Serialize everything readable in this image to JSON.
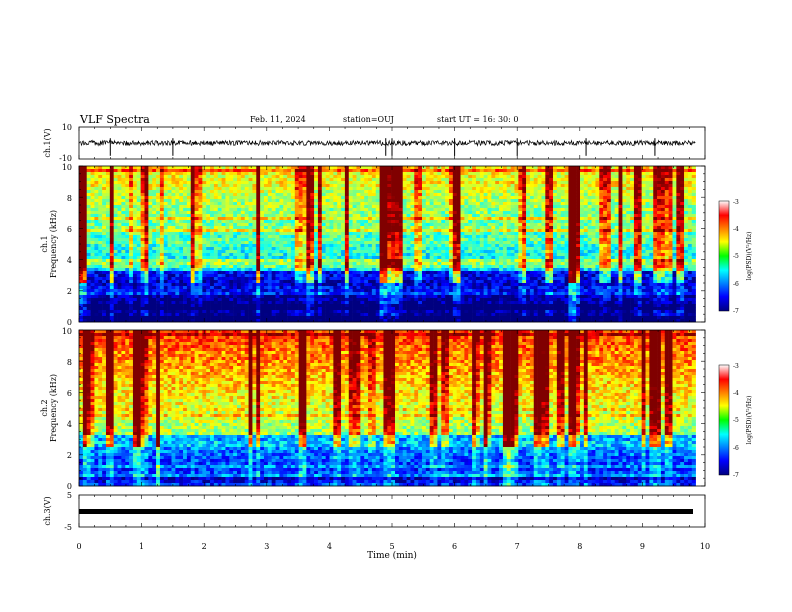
{
  "header": {
    "title": "VLF Spectra",
    "date": "Feb. 11, 2024",
    "station": "station=OUJ",
    "start_ut": "start  UT =   16: 30: 0"
  },
  "chart_data": [
    {
      "type": "line",
      "name": "ch1_waveform",
      "ylabel": "ch.1(V)",
      "ylim": [
        -10,
        10
      ],
      "ytick_labels": [
        "10",
        "-10"
      ],
      "baseline": 0,
      "spikes_at_min": [
        0.5,
        1.5,
        4.9,
        5.0,
        6.0,
        7.0,
        8.1,
        9.2
      ]
    },
    {
      "type": "heatmap",
      "name": "ch1_spectrogram",
      "ylabel_top": "ch.1",
      "ylabel": "Frequency  (kHz)",
      "ylim": [
        0,
        10
      ],
      "ytick_labels": [
        "0",
        "2",
        "4",
        "6",
        "8",
        "10"
      ],
      "colorbar": {
        "label": "log(PSD)(V²/Hz)",
        "range": [
          -7,
          -3
        ],
        "tick_labels": [
          "-3",
          "-4",
          "-5",
          "-6",
          "-7"
        ]
      }
    },
    {
      "type": "heatmap",
      "name": "ch2_spectrogram",
      "ylabel_top": "ch.2",
      "ylabel": "Frequency  (kHz)",
      "ylim": [
        0,
        10
      ],
      "ytick_labels": [
        "0",
        "2",
        "4",
        "6",
        "8",
        "10"
      ],
      "colorbar": {
        "label": "log(PSD)(V²/Hz)",
        "range": [
          -7,
          -3
        ],
        "tick_labels": [
          "-3",
          "-4",
          "-5",
          "-6",
          "-7"
        ]
      }
    },
    {
      "type": "line",
      "name": "ch3_waveform",
      "ylabel": "ch.3(V)",
      "ylim": [
        -5,
        5
      ],
      "ytick_labels": [
        "5",
        "-5"
      ],
      "baseline": 0
    }
  ],
  "x_axis": {
    "label": "Time  (min)",
    "range": [
      0,
      10
    ],
    "tick_labels": [
      "0",
      "1",
      "2",
      "3",
      "4",
      "5",
      "6",
      "7",
      "8",
      "9",
      "10"
    ],
    "data_end_min": 9.85
  },
  "colors": {
    "background": "#ffffff",
    "axis": "#000000",
    "waveform": "#000000"
  }
}
